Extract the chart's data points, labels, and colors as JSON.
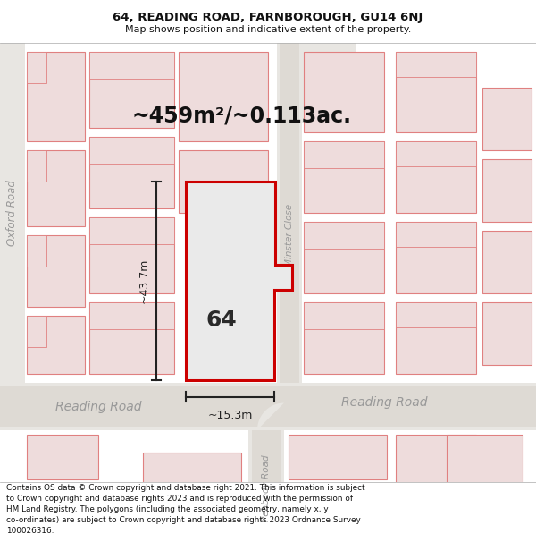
{
  "title": "64, READING ROAD, FARNBOROUGH, GU14 6NJ",
  "subtitle": "Map shows position and indicative extent of the property.",
  "area_text": "~459m²/~0.113ac.",
  "width_text": "~15.3m",
  "height_text": "~43.7m",
  "number_label": "64",
  "footer": "Contains OS data © Crown copyright and database right 2021. This information is subject to Crown copyright and database rights 2023 and is reproduced with the permission of HM Land Registry. The polygons (including the associated geometry, namely x, y co-ordinates) are subject to Crown copyright and database rights 2023 Ordnance Survey 100026316.",
  "map_bg": "#f2f0ed",
  "road_fill": "#e8e6e2",
  "road_center": "#dedad4",
  "building_stroke": "#e08080",
  "building_fill": "#eedcdc",
  "building_fill_gray": "#e0dede",
  "highlight_stroke": "#cc0000",
  "highlight_fill": "#eaeaea",
  "dim_color": "#222222",
  "road_label_color": "#999999",
  "title_color": "#111111",
  "footer_color": "#111111",
  "white": "#ffffff"
}
